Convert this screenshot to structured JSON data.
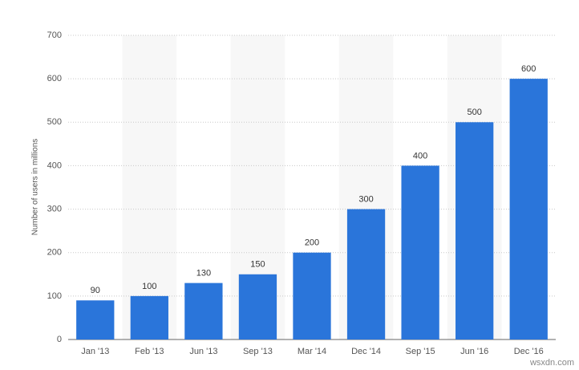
{
  "chart_data": {
    "type": "bar",
    "y_label": "Number of users in millions",
    "categories": [
      "Jan '13",
      "Feb '13",
      "Jun '13",
      "Sep '13",
      "Mar '14",
      "Dec '14",
      "Sep '15",
      "Jun '16",
      "Dec '16"
    ],
    "values": [
      90,
      100,
      130,
      150,
      200,
      300,
      400,
      500,
      600
    ],
    "color": "#2a75da",
    "ylim": [
      0,
      700
    ],
    "yticks": [
      0,
      100,
      200,
      300,
      400,
      500,
      600,
      700
    ],
    "grid": true,
    "watermark": "wsxdn.com"
  }
}
